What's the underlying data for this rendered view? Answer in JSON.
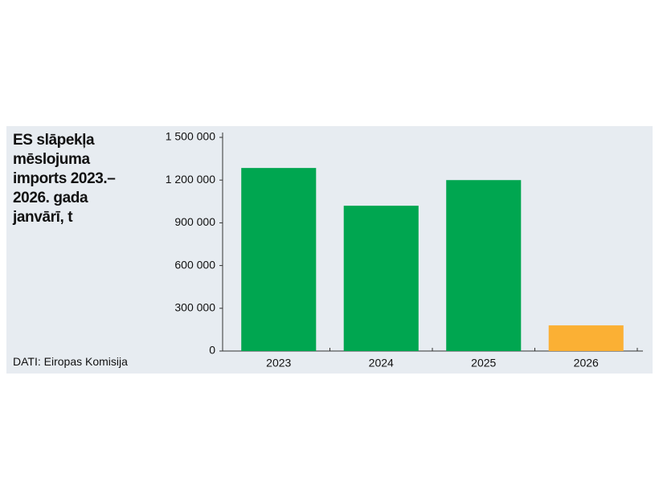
{
  "chart_data": {
    "type": "bar",
    "title": "ES slāpekļa mēslojuma imports 2023.–2026. gada janvārī, t",
    "source": "DATI: Eiropas Komisija",
    "categories": [
      "2023",
      "2024",
      "2025",
      "2026"
    ],
    "values": [
      1285000,
      1020000,
      1200000,
      180000
    ],
    "colors": [
      "#00a650",
      "#00a650",
      "#00a650",
      "#fbb034"
    ],
    "ylim": [
      0,
      1500000
    ],
    "yticks": [
      0,
      {
        "value": 300000,
        "label": "300 000"
      },
      {
        "value": 600000,
        "label": "600 000"
      },
      {
        "value": 900000,
        "label": "900 000"
      },
      {
        "value": 1200000,
        "label": "1 200 000"
      },
      {
        "value": 1500000,
        "label": "1 500 000"
      }
    ],
    "grid": false
  }
}
